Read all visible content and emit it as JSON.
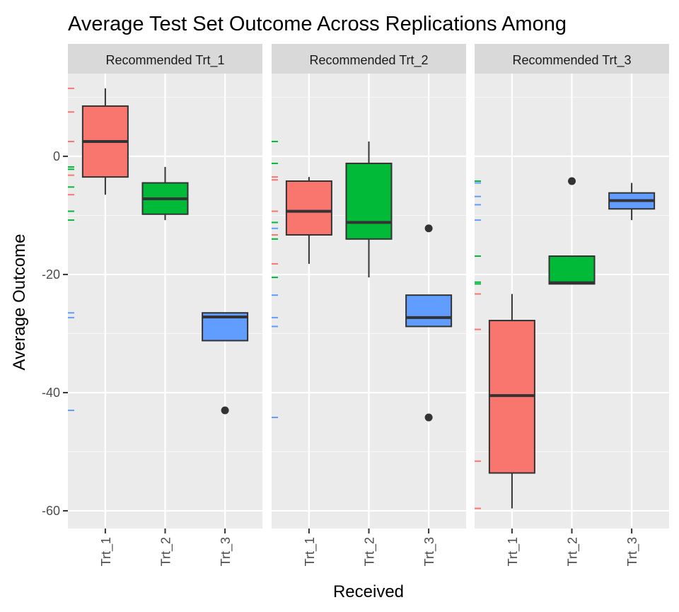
{
  "chart_data": {
    "type": "boxplot",
    "title": "Average Test Set Outcome Across Replications Among",
    "xlabel": "Received",
    "ylabel": "Average Outcome",
    "ylim": [
      -63,
      14
    ],
    "y_ticks": [
      0,
      -20,
      -40,
      -60
    ],
    "y_tick_labels": [
      "0",
      "-20",
      "-40",
      "-60"
    ],
    "categories": [
      "Trt_1",
      "Trt_2",
      "Trt_3"
    ],
    "colors": {
      "Trt_1": "#F8766D",
      "Trt_2": "#00BA38",
      "Trt_3": "#619CFF"
    },
    "grid": true,
    "legend": "none",
    "facets": [
      {
        "label": "Recommended Trt_1",
        "boxes": [
          {
            "category": "Trt_1",
            "q1": -3.5,
            "median": 2.5,
            "q3": 8.5,
            "whisker_low": -6.5,
            "whisker_high": 11.5,
            "outliers": []
          },
          {
            "category": "Trt_2",
            "q1": -9.8,
            "median": -7.2,
            "q3": -4.5,
            "whisker_low": -10.8,
            "whisker_high": -1.8,
            "outliers": []
          },
          {
            "category": "Trt_3",
            "q1": -31.2,
            "median": -27.2,
            "q3": -26.5,
            "whisker_low": -31.2,
            "whisker_high": -26.5,
            "outliers": [
              -43
            ]
          }
        ],
        "rug": [
          {
            "category": "Trt_1",
            "values": [
              11.5,
              7.5,
              2.5,
              -3.2,
              -6.5
            ]
          },
          {
            "category": "Trt_2",
            "values": [
              -1.8,
              -2.2,
              -5.2,
              -9.3,
              -10.8
            ]
          },
          {
            "category": "Trt_3",
            "values": [
              -26.5,
              -27.3,
              -43
            ]
          }
        ]
      },
      {
        "label": "Recommended Trt_2",
        "boxes": [
          {
            "category": "Trt_1",
            "q1": -13.3,
            "median": -9.3,
            "q3": -4.2,
            "whisker_low": -18.2,
            "whisker_high": -3.5,
            "outliers": []
          },
          {
            "category": "Trt_2",
            "q1": -14,
            "median": -11.2,
            "q3": -1.2,
            "whisker_low": -20.5,
            "whisker_high": 2.5,
            "outliers": []
          },
          {
            "category": "Trt_3",
            "q1": -28.8,
            "median": -27.3,
            "q3": -23.5,
            "whisker_low": -28.8,
            "whisker_high": -23.5,
            "outliers": [
              -12.2,
              -44.2
            ]
          }
        ],
        "rug": [
          {
            "category": "Trt_1",
            "values": [
              -3.5,
              -4.0,
              -9.3,
              -13.3,
              -18.2
            ]
          },
          {
            "category": "Trt_2",
            "values": [
              2.5,
              -1.2,
              -11.2,
              -14.0,
              -20.5
            ]
          },
          {
            "category": "Trt_3",
            "values": [
              -12.2,
              -23.5,
              -27.3,
              -28.8,
              -44.2
            ]
          }
        ]
      },
      {
        "label": "Recommended Trt_3",
        "boxes": [
          {
            "category": "Trt_1",
            "q1": -53.6,
            "median": -40.5,
            "q3": -27.8,
            "whisker_low": -59.6,
            "whisker_high": -23.3,
            "outliers": []
          },
          {
            "category": "Trt_2",
            "q1": -21.6,
            "median": -21.4,
            "q3": -16.9,
            "whisker_low": -21.6,
            "whisker_high": -16.9,
            "outliers": [
              -4.2
            ]
          },
          {
            "category": "Trt_3",
            "q1": -8.9,
            "median": -7.5,
            "q3": -6.2,
            "whisker_low": -10.8,
            "whisker_high": -4.5,
            "outliers": []
          }
        ],
        "rug": [
          {
            "category": "Trt_1",
            "values": [
              -23.3,
              -29.3,
              -51.6,
              -59.6
            ]
          },
          {
            "category": "Trt_2",
            "values": [
              -4.2,
              -16.9,
              -21.3,
              -21.6
            ]
          },
          {
            "category": "Trt_3",
            "values": [
              -4.5,
              -6.8,
              -8.2,
              -10.8
            ]
          }
        ]
      }
    ]
  }
}
